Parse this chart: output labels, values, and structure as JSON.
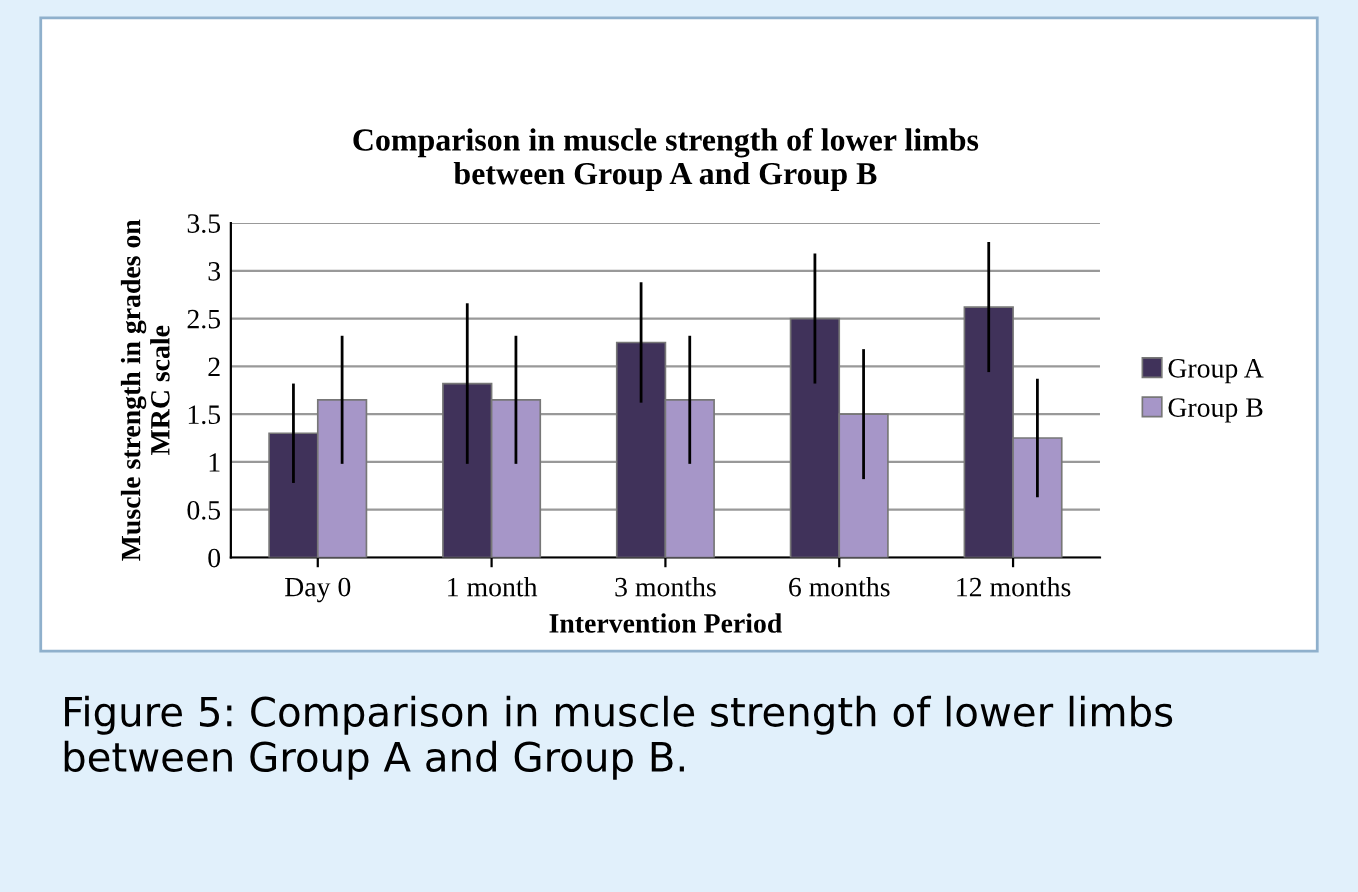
{
  "chart_data": {
    "type": "bar",
    "title": "Comparison in muscle strength of lower limbs\nbetween Group A and Group B",
    "xlabel": "Intervention Period",
    "ylabel": "Muscle strength in grades on\nMRC scale",
    "categories": [
      "Day 0",
      "1 month",
      "3 months",
      "6 months",
      "12 months"
    ],
    "series": [
      {
        "name": "Group A",
        "color": "#40325a",
        "values": [
          1.3,
          1.82,
          2.25,
          2.5,
          2.62
        ],
        "errors": [
          0.52,
          0.84,
          0.63,
          0.68,
          0.68
        ]
      },
      {
        "name": "Group B",
        "color": "#a696c8",
        "values": [
          1.65,
          1.65,
          1.65,
          1.5,
          1.25
        ],
        "errors": [
          0.67,
          0.67,
          0.67,
          0.68,
          0.62
        ]
      }
    ],
    "ylim": [
      0,
      3.5
    ],
    "yticks": [
      0,
      0.5,
      1,
      1.5,
      2,
      2.5,
      3,
      3.5
    ],
    "grid": "y",
    "legend": "right",
    "annotations": [
      "Figure 5: Comparison in muscle strength of lower limbs between Group A and Group B."
    ]
  }
}
